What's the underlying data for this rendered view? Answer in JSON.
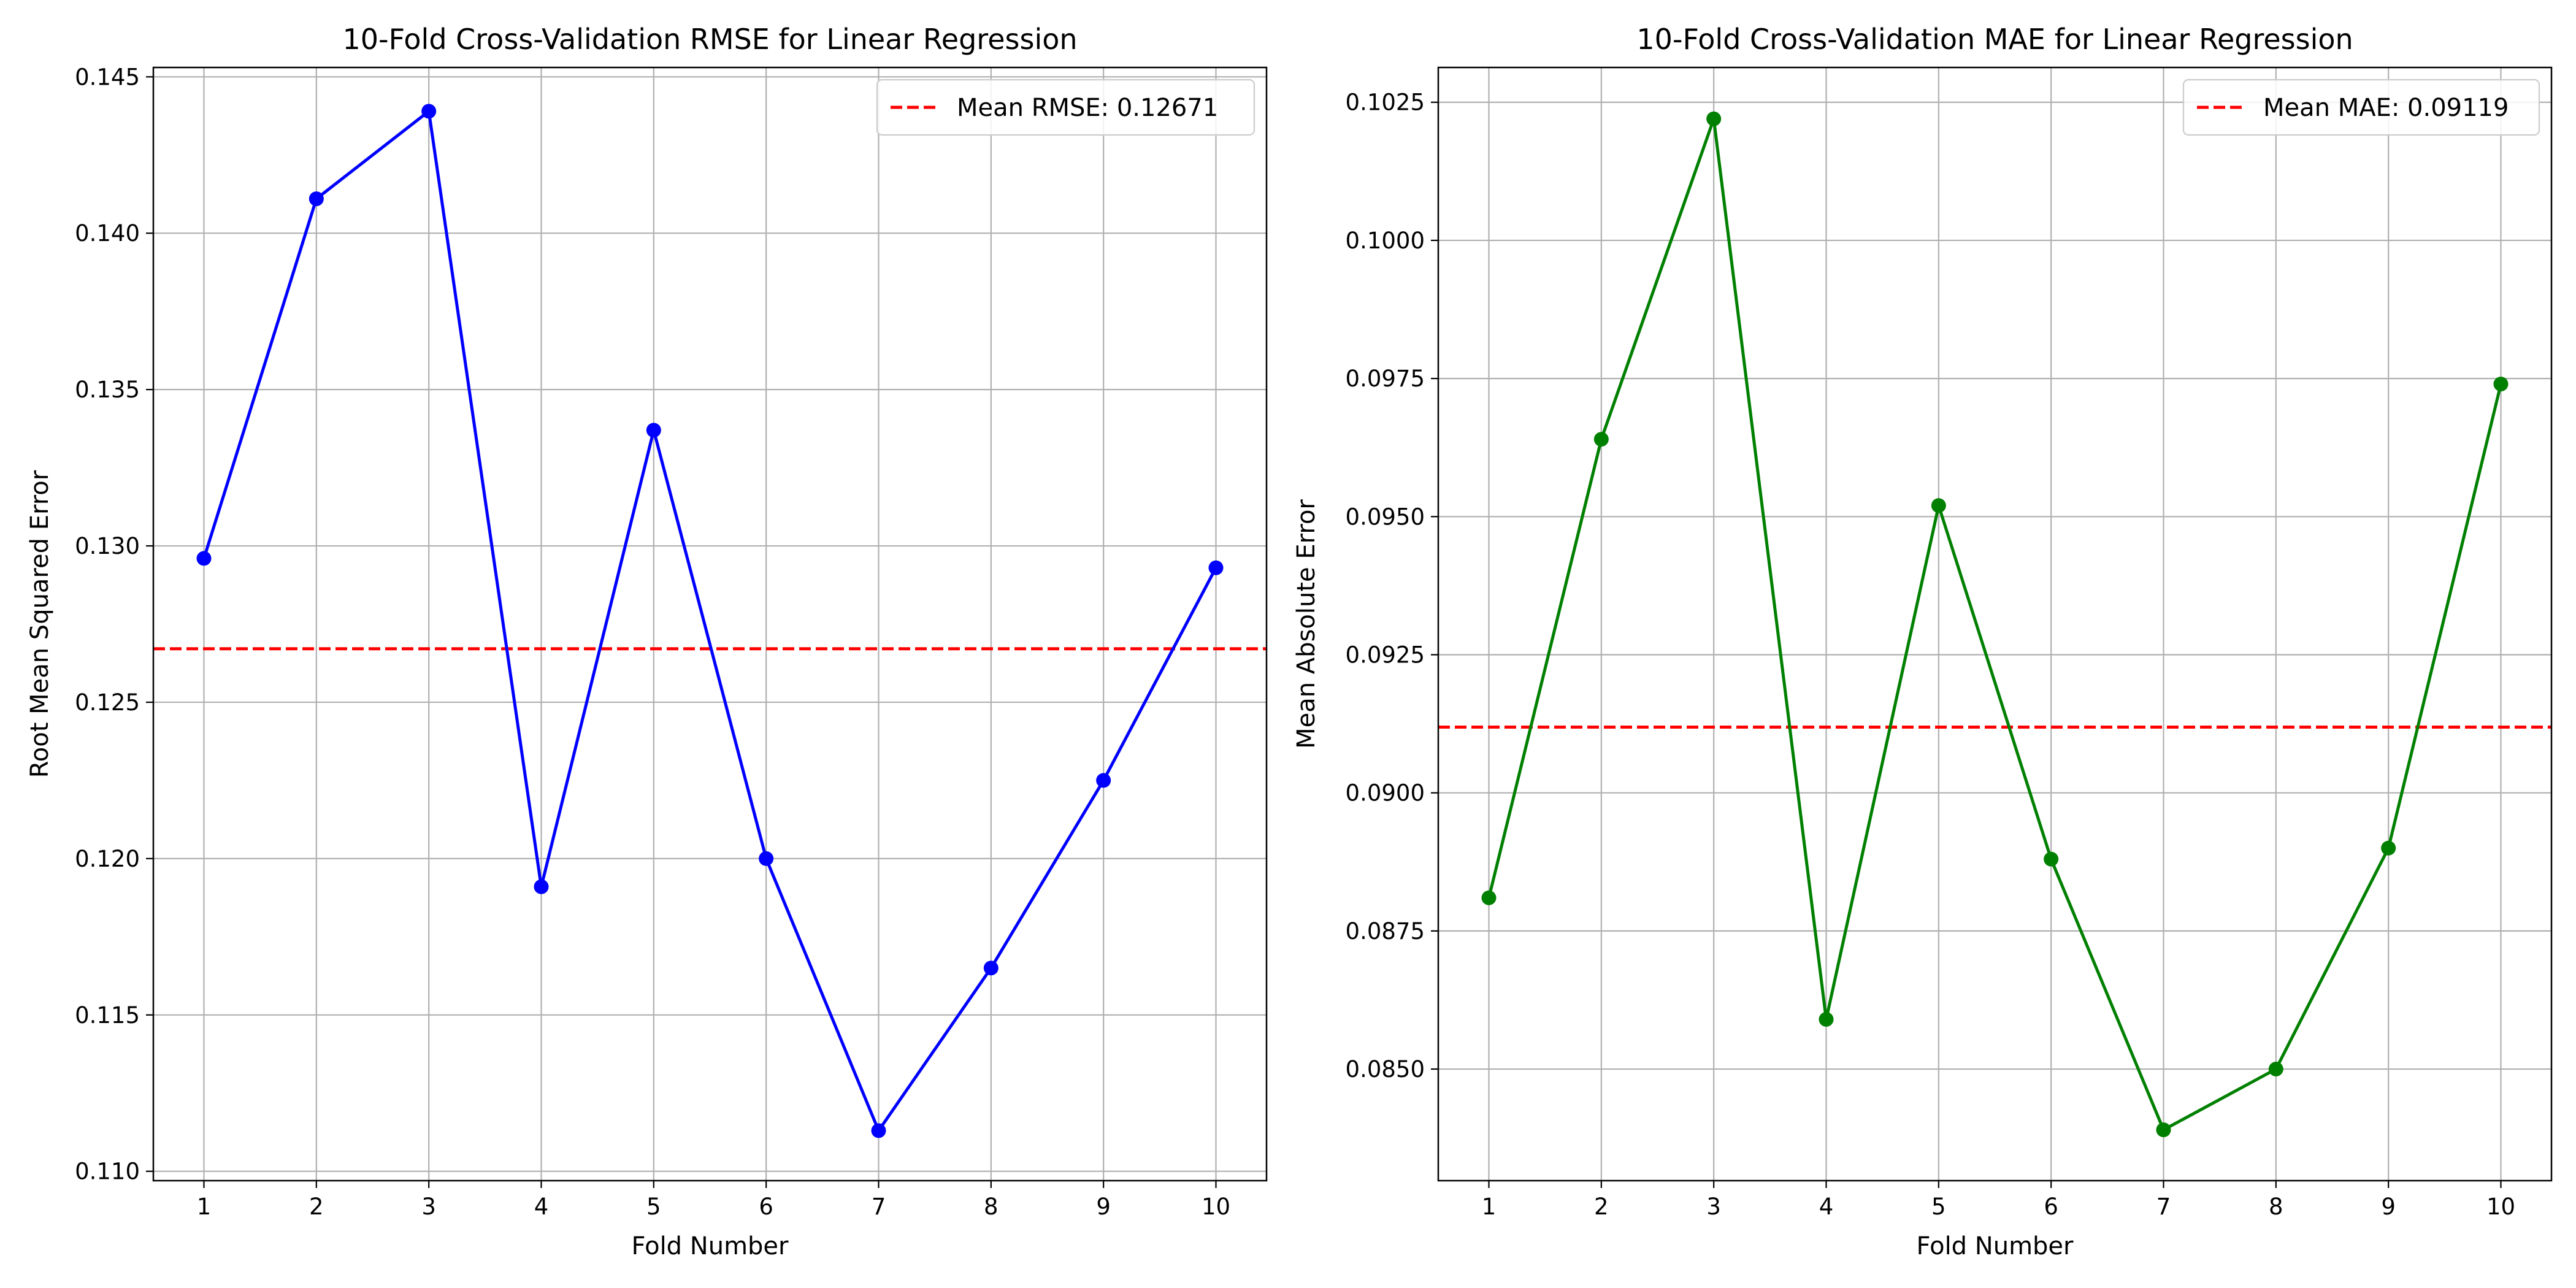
{
  "chart_data": [
    {
      "type": "line",
      "title": "10-Fold Cross-Validation RMSE for Linear Regression",
      "xlabel": "Fold Number",
      "ylabel": "Root Mean Squared Error",
      "x": [
        1,
        2,
        3,
        4,
        5,
        6,
        7,
        8,
        9,
        10
      ],
      "x_ticks": [
        "1",
        "2",
        "3",
        "4",
        "5",
        "6",
        "7",
        "8",
        "9",
        "10"
      ],
      "xlim": [
        0.55,
        10.45
      ],
      "ylim": [
        0.1097,
        0.1453
      ],
      "y_ticks": [
        0.11,
        0.115,
        0.12,
        0.125,
        0.13,
        0.135,
        0.14,
        0.145
      ],
      "y_tick_labels": [
        "0.110",
        "0.115",
        "0.120",
        "0.125",
        "0.130",
        "0.135",
        "0.140",
        "0.145"
      ],
      "series": [
        {
          "values": [
            0.1296,
            0.1411,
            0.1439,
            0.1191,
            0.1337,
            0.12,
            0.1113,
            0.1165,
            0.1225,
            0.1293
          ],
          "color": "#0000ff",
          "marker": "circle"
        }
      ],
      "mean_line": {
        "value": 0.12671,
        "label": "Mean RMSE: 0.12671",
        "color": "#ff0000",
        "style": "dashed"
      },
      "grid": true,
      "legend_position": "top-right"
    },
    {
      "type": "line",
      "title": "10-Fold Cross-Validation MAE for Linear Regression",
      "xlabel": "Fold Number",
      "ylabel": "Mean Absolute Error",
      "x": [
        1,
        2,
        3,
        4,
        5,
        6,
        7,
        8,
        9,
        10
      ],
      "x_ticks": [
        "1",
        "2",
        "3",
        "4",
        "5",
        "6",
        "7",
        "8",
        "9",
        "10"
      ],
      "xlim": [
        0.55,
        10.45
      ],
      "ylim": [
        0.08298,
        0.10313
      ],
      "y_ticks": [
        0.085,
        0.0875,
        0.09,
        0.0925,
        0.095,
        0.0975,
        0.1,
        0.1025
      ],
      "y_tick_labels": [
        "0.0850",
        "0.0875",
        "0.0900",
        "0.0925",
        "0.0950",
        "0.0975",
        "0.1000",
        "0.1025"
      ],
      "series": [
        {
          "values": [
            0.0881,
            0.0964,
            0.1022,
            0.0859,
            0.0952,
            0.0888,
            0.0839,
            0.085,
            0.089,
            0.0974
          ],
          "color": "#008000",
          "marker": "circle"
        }
      ],
      "mean_line": {
        "value": 0.09119,
        "label": "Mean MAE: 0.09119",
        "color": "#ff0000",
        "style": "dashed"
      },
      "grid": true,
      "legend_position": "top-right"
    }
  ]
}
